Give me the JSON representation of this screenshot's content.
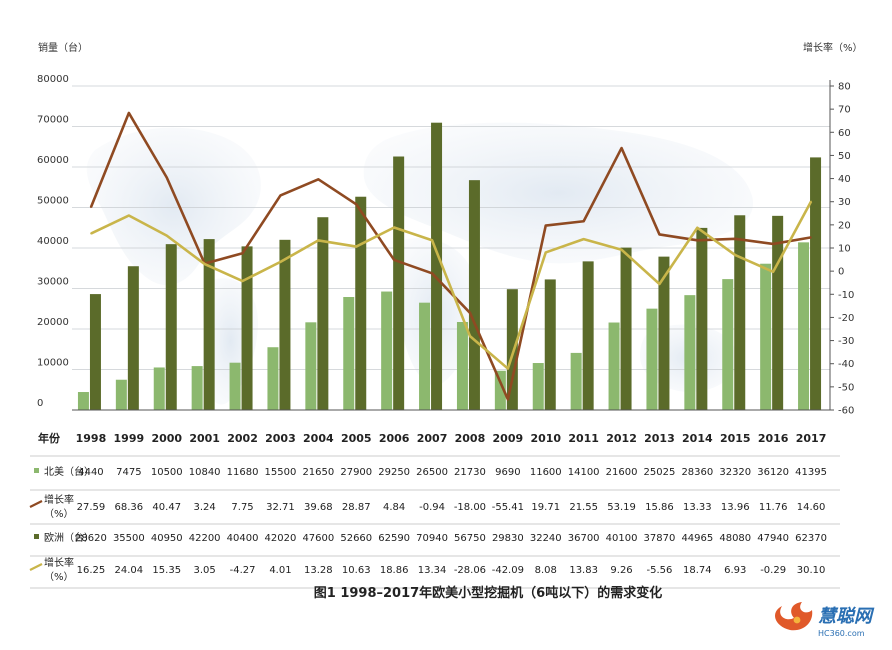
{
  "chart_data": {
    "type": "bar",
    "title": "图1 1998–2017年欧美小型挖掘机（6吨以下）的需求变化",
    "ylabel": "销量（台）",
    "y2label": "增长率（%）",
    "ylim": [
      0,
      80000
    ],
    "y2lim": [
      -60,
      80
    ],
    "yticks": [
      "80000",
      "70000",
      "60000",
      "50000",
      "40000",
      "30000",
      "20000",
      "10000",
      "0"
    ],
    "y2ticks": [
      "80",
      "70",
      "60",
      "50",
      "40",
      "30",
      "20",
      "10",
      "0",
      "-10",
      "-20",
      "-30",
      "-40",
      "-50",
      "-60"
    ],
    "categories": [
      "1998",
      "1999",
      "2000",
      "2001",
      "2002",
      "2003",
      "2004",
      "2005",
      "2006",
      "2007",
      "2008",
      "2009",
      "2010",
      "2011",
      "2012",
      "2013",
      "2014",
      "2015",
      "2016",
      "2017"
    ],
    "series": [
      {
        "name": "北美（台）",
        "type": "bar",
        "color": "#8cb86e",
        "values": [
          4440,
          7475,
          10500,
          10840,
          11680,
          15500,
          21650,
          27900,
          29250,
          26500,
          21730,
          9690,
          11600,
          14100,
          21600,
          25025,
          28360,
          32320,
          36120,
          41395
        ],
        "labels": [
          "4440",
          "7475",
          "10500",
          "10840",
          "11680",
          "15500",
          "21650",
          "27900",
          "29250",
          "26500",
          "21730",
          "9690",
          "11600",
          "14100",
          "21600",
          "25025",
          "28360",
          "32320",
          "36120",
          "41395"
        ]
      },
      {
        "name": "增长率（%）",
        "type": "line",
        "axis": "right",
        "color": "#8f4a22",
        "values": [
          27.59,
          68.36,
          40.47,
          3.24,
          7.75,
          32.71,
          39.68,
          28.87,
          4.84,
          -0.94,
          -18.0,
          -55.41,
          19.71,
          21.55,
          53.19,
          15.86,
          13.33,
          13.96,
          11.76,
          14.6
        ],
        "labels": [
          "27.59",
          "68.36",
          "40.47",
          "3.24",
          "7.75",
          "32.71",
          "39.68",
          "28.87",
          "4.84",
          "-0.94",
          "-18.00",
          "-55.41",
          "19.71",
          "21.55",
          "53.19",
          "15.86",
          "13.33",
          "13.96",
          "11.76",
          "14.60"
        ]
      },
      {
        "name": "欧洲（台）",
        "type": "bar",
        "color": "#5b6b2a",
        "values": [
          28620,
          35500,
          40950,
          42200,
          40400,
          42020,
          47600,
          52660,
          62590,
          70940,
          56750,
          29830,
          32240,
          36700,
          40100,
          37870,
          44965,
          48080,
          47940,
          62370
        ],
        "labels": [
          "28620",
          "35500",
          "40950",
          "42200",
          "40400",
          "42020",
          "47600",
          "52660",
          "62590",
          "70940",
          "56750",
          "29830",
          "32240",
          "36700",
          "40100",
          "37870",
          "44965",
          "48080",
          "47940",
          "62370"
        ]
      },
      {
        "name": "增长率（%）",
        "type": "line",
        "axis": "right",
        "color": "#c9b54a",
        "values": [
          16.25,
          24.04,
          15.35,
          3.05,
          -4.27,
          4.01,
          13.28,
          10.63,
          18.86,
          13.34,
          -28.06,
          -42.09,
          8.08,
          13.83,
          9.26,
          -5.56,
          18.74,
          6.93,
          -0.29,
          30.1
        ],
        "labels": [
          "16.25",
          "24.04",
          "15.35",
          "3.05",
          "-4.27",
          "4.01",
          "13.28",
          "10.63",
          "18.86",
          "13.34",
          "-28.06",
          "-42.09",
          "8.08",
          "13.83",
          "9.26",
          "-5.56",
          "18.74",
          "6.93",
          "-0.29",
          "30.10"
        ]
      }
    ],
    "table": {
      "header": "年份",
      "row_labels": [
        [
          "北美（台）"
        ],
        [
          "增长率",
          "（%）"
        ],
        [
          "欧洲（台）"
        ],
        [
          "增长率",
          "（%）"
        ]
      ]
    },
    "grid": true
  },
  "watermark": {
    "brand": "慧聪网",
    "domain": "HC360.com"
  }
}
